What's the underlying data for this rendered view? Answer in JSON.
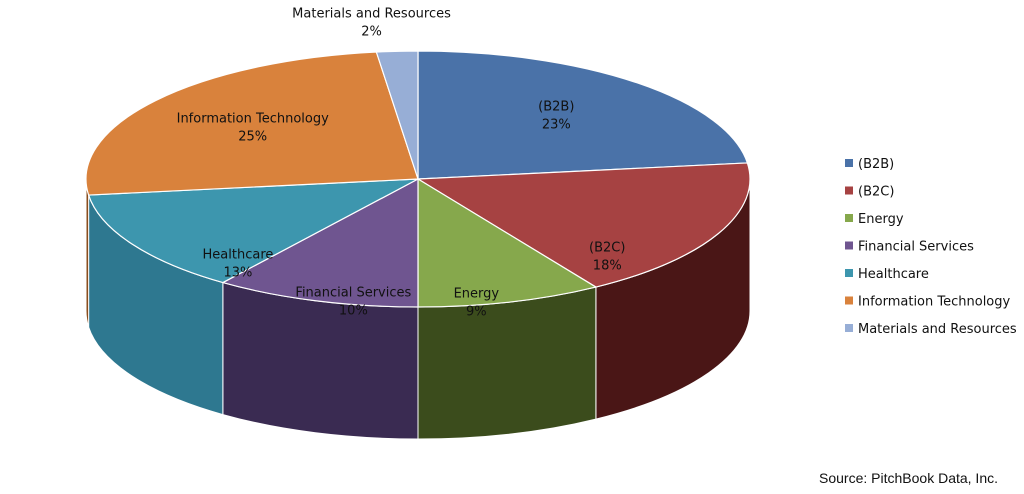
{
  "chart_data": {
    "type": "pie",
    "title": "",
    "slices": [
      {
        "label": "(B2B)",
        "value": 23,
        "pct_label": "23%",
        "color": "#4A72A8",
        "side": "#24406A"
      },
      {
        "label": "(B2C)",
        "value": 18,
        "pct_label": "18%",
        "color": "#A64242",
        "side": "#4A1616"
      },
      {
        "label": "Energy",
        "value": 9,
        "pct_label": "9%",
        "color": "#86A84C",
        "side": "#3B4C1C"
      },
      {
        "label": "Financial Services",
        "value": 10,
        "pct_label": "10%",
        "color": "#6F5590",
        "side": "#3A2B52"
      },
      {
        "label": "Healthcare",
        "value": 13,
        "pct_label": "13%",
        "color": "#3D96AE",
        "side": "#2E7890"
      },
      {
        "label": "Information Technology",
        "value": 25,
        "pct_label": "25%",
        "color": "#D9823C",
        "side": "#8A4E1E"
      },
      {
        "label": "Materials and Resources",
        "value": 2,
        "pct_label": "2%",
        "color": "#97AED6",
        "side": "#55678A"
      }
    ],
    "legend_position": "right"
  },
  "footer": {
    "source": "Source: PitchBook Data, Inc."
  }
}
